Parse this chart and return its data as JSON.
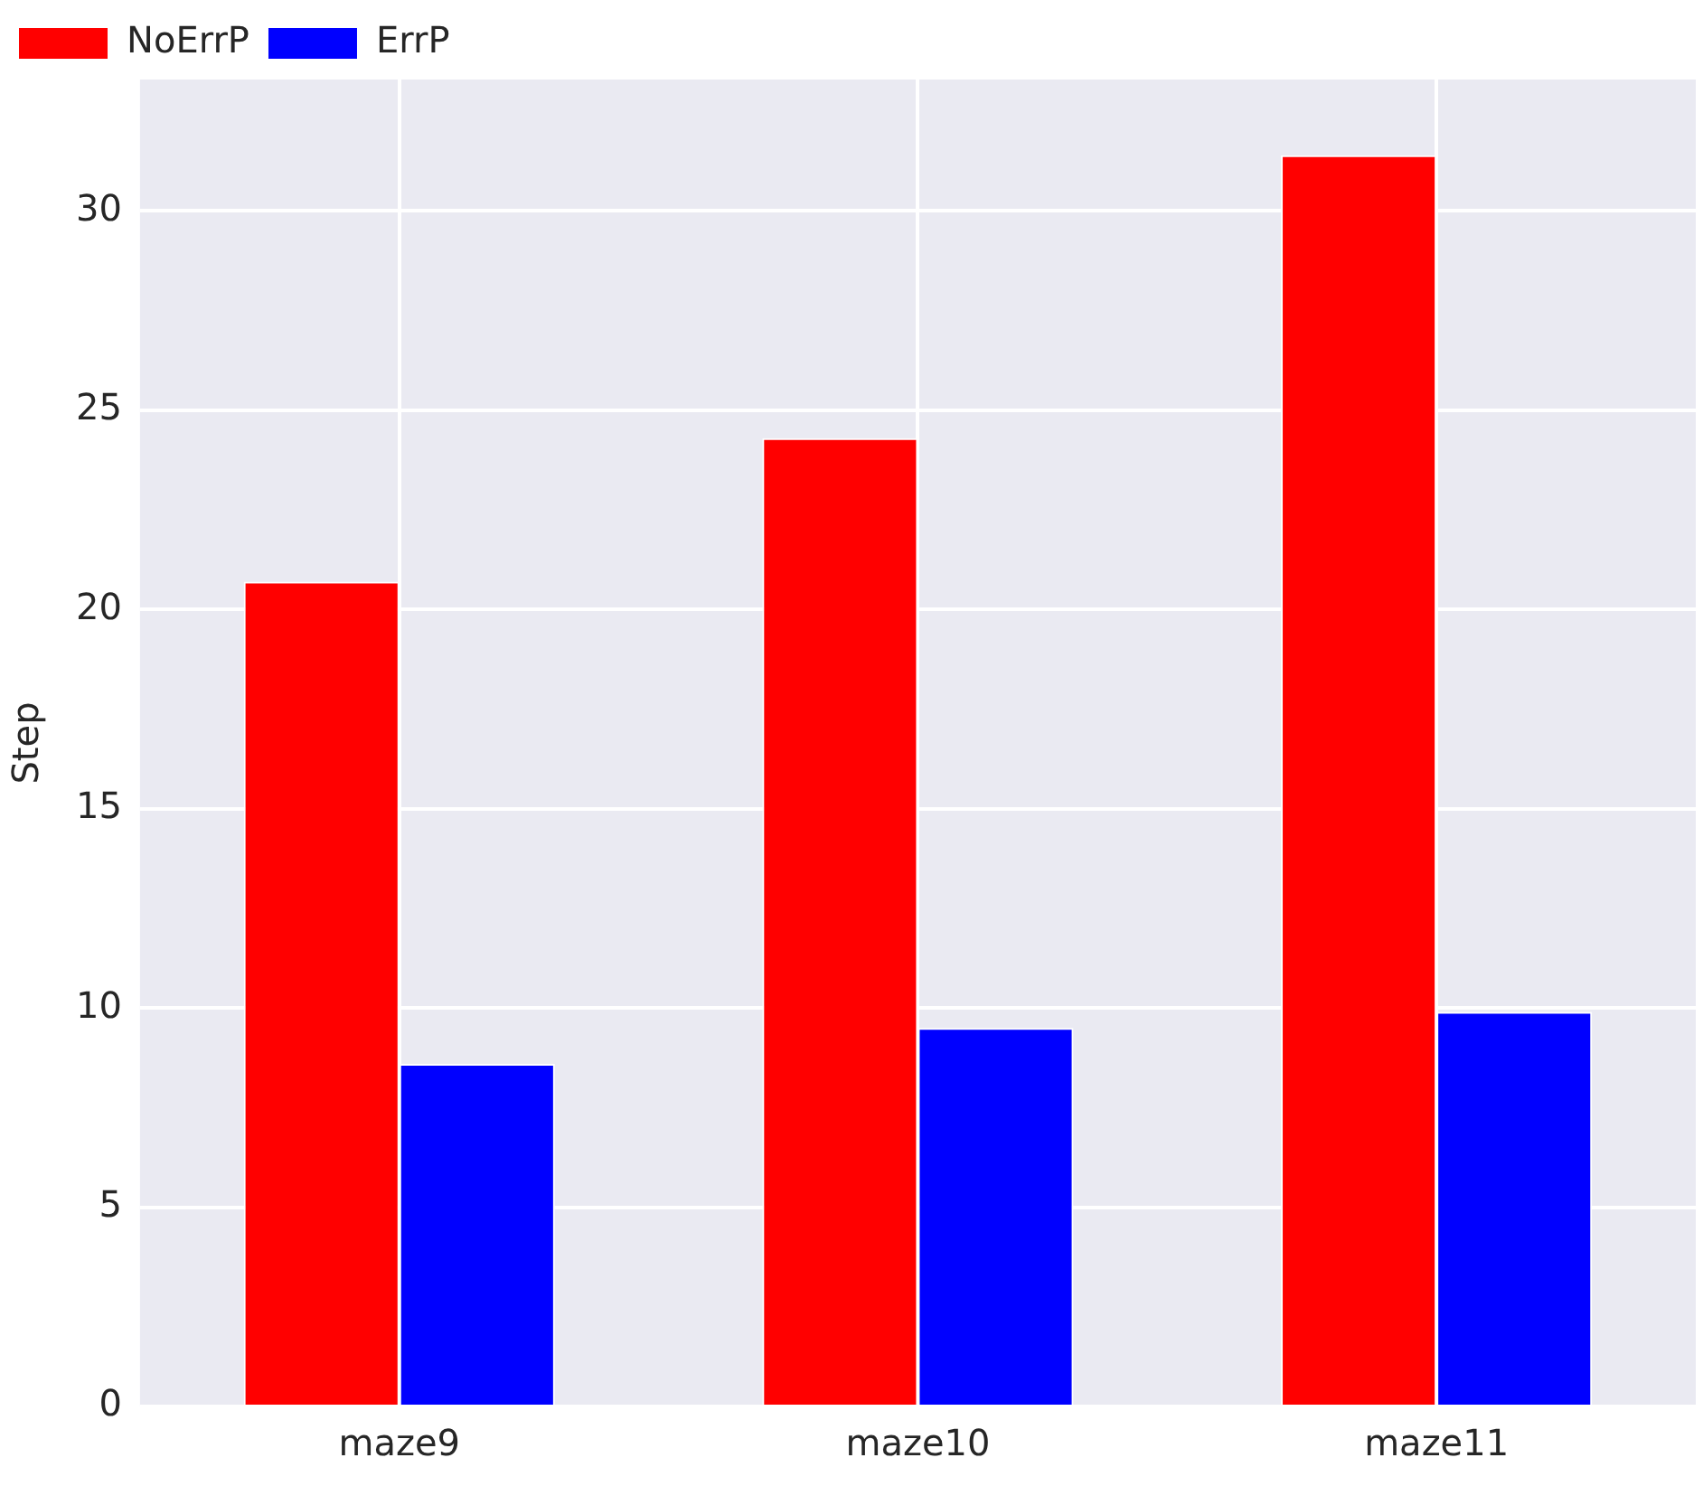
{
  "chart_data": {
    "type": "bar",
    "ylabel": "Step",
    "categories": [
      "maze9",
      "maze10",
      "maze11"
    ],
    "series": [
      {
        "name": "NoErrP",
        "color": "#ff0000",
        "values": [
          20.7,
          24.3,
          31.4
        ]
      },
      {
        "name": "ErrP",
        "color": "#0000ff",
        "values": [
          8.6,
          9.5,
          9.9
        ]
      }
    ],
    "ylim": [
      0,
      33.3
    ],
    "yticks": [
      0,
      5,
      10,
      15,
      20,
      25,
      30
    ],
    "grid": true,
    "legend": "top left"
  }
}
